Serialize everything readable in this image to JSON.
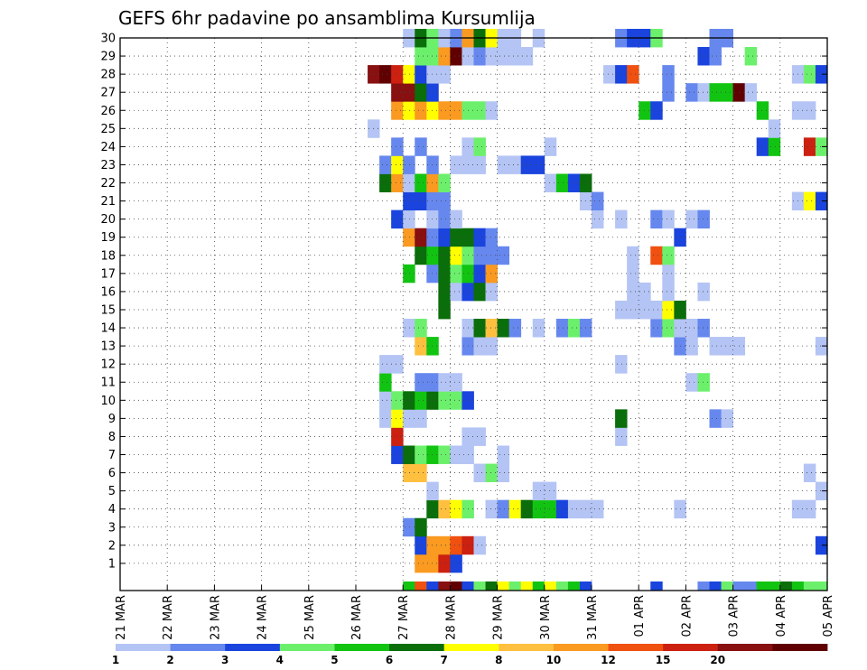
{
  "chart_data": {
    "type": "heatmap",
    "title": "GEFS 6hr padavine po ansamblima Kursumlija",
    "x_ticks": [
      "21 MAR",
      "22 MAR",
      "23 MAR",
      "24 MAR",
      "25 MAR",
      "26 MAR",
      "27 MAR",
      "28 MAR",
      "29 MAR",
      "30 MAR",
      "31 MAR",
      "01 APR",
      "02 APR",
      "03 APR",
      "04 APR",
      "05 APR"
    ],
    "y_ticks": [
      "1",
      "2",
      "3",
      "4",
      "5",
      "6",
      "7",
      "8",
      "9",
      "10",
      "11",
      "12",
      "13",
      "14",
      "15",
      "16",
      "17",
      "18",
      "19",
      "20",
      "21",
      "22",
      "23",
      "24",
      "25",
      "26",
      "27",
      "28",
      "29",
      "30"
    ],
    "x_range": [
      0,
      60
    ],
    "y_range": [
      0,
      30
    ],
    "grid": true,
    "colorbar": {
      "labels": [
        "1",
        "2",
        "3",
        "4",
        "5",
        "6",
        "7",
        "8",
        "10",
        "12",
        "15",
        "20"
      ],
      "colors": [
        "#b4c4f4",
        "#6688ee",
        "#1a44dd",
        "#6cf06c",
        "#12c412",
        "#0a6e0a",
        "#ffff00",
        "#ffc040",
        "#fa9a20",
        "#f05010",
        "#cc2010",
        "#881010",
        "#600000"
      ]
    },
    "cells": [
      [
        24,
        0,
        4
      ],
      [
        25,
        0,
        9
      ],
      [
        26,
        0,
        2
      ],
      [
        27,
        0,
        11
      ],
      [
        28,
        0,
        12
      ],
      [
        29,
        0,
        2
      ],
      [
        30,
        0,
        3
      ],
      [
        31,
        0,
        5
      ],
      [
        32,
        0,
        6
      ],
      [
        33,
        0,
        3
      ],
      [
        34,
        0,
        6
      ],
      [
        35,
        0,
        4
      ],
      [
        36,
        0,
        6
      ],
      [
        37,
        0,
        3
      ],
      [
        38,
        0,
        4
      ],
      [
        39,
        0,
        2
      ],
      [
        45,
        0,
        2
      ],
      [
        49,
        0,
        1
      ],
      [
        50,
        0,
        2
      ],
      [
        51,
        0,
        3
      ],
      [
        52,
        0,
        1
      ],
      [
        53,
        0,
        1
      ],
      [
        54,
        0,
        4
      ],
      [
        55,
        0,
        4
      ],
      [
        56,
        0,
        5
      ],
      [
        57,
        0,
        4
      ],
      [
        58,
        0,
        3
      ],
      [
        59,
        0,
        3
      ],
      [
        25,
        1,
        8
      ],
      [
        26,
        1,
        8
      ],
      [
        27,
        1,
        10
      ],
      [
        28,
        1,
        2
      ],
      [
        25,
        2,
        2
      ],
      [
        26,
        2,
        8
      ],
      [
        27,
        2,
        8
      ],
      [
        28,
        2,
        9
      ],
      [
        29,
        2,
        10
      ],
      [
        30,
        2,
        0
      ],
      [
        59,
        2,
        2
      ],
      [
        24,
        3,
        1
      ],
      [
        25,
        3,
        5
      ],
      [
        26,
        4,
        5
      ],
      [
        27,
        4,
        7
      ],
      [
        28,
        4,
        6
      ],
      [
        29,
        4,
        3
      ],
      [
        31,
        4,
        0
      ],
      [
        32,
        4,
        1
      ],
      [
        33,
        4,
        6
      ],
      [
        34,
        4,
        5
      ],
      [
        35,
        4,
        4
      ],
      [
        36,
        4,
        4
      ],
      [
        37,
        4,
        2
      ],
      [
        38,
        4,
        0
      ],
      [
        39,
        4,
        0
      ],
      [
        40,
        4,
        0
      ],
      [
        47,
        4,
        0
      ],
      [
        57,
        4,
        0
      ],
      [
        58,
        4,
        0
      ],
      [
        26,
        5,
        0
      ],
      [
        35,
        5,
        0
      ],
      [
        36,
        5,
        0
      ],
      [
        59,
        5,
        0
      ],
      [
        24,
        6,
        7
      ],
      [
        25,
        6,
        7
      ],
      [
        30,
        6,
        0
      ],
      [
        31,
        6,
        3
      ],
      [
        32,
        6,
        0
      ],
      [
        58,
        6,
        0
      ],
      [
        23,
        7,
        2
      ],
      [
        24,
        7,
        5
      ],
      [
        25,
        7,
        3
      ],
      [
        26,
        7,
        4
      ],
      [
        27,
        7,
        3
      ],
      [
        28,
        7,
        0
      ],
      [
        29,
        7,
        0
      ],
      [
        32,
        7,
        0
      ],
      [
        23,
        8,
        10
      ],
      [
        29,
        8,
        0
      ],
      [
        30,
        8,
        0
      ],
      [
        42,
        8,
        0
      ],
      [
        22,
        9,
        0
      ],
      [
        23,
        9,
        6
      ],
      [
        24,
        9,
        0
      ],
      [
        25,
        9,
        0
      ],
      [
        42,
        9,
        5
      ],
      [
        50,
        9,
        1
      ],
      [
        51,
        9,
        0
      ],
      [
        22,
        10,
        0
      ],
      [
        23,
        10,
        3
      ],
      [
        24,
        10,
        5
      ],
      [
        25,
        10,
        4
      ],
      [
        26,
        10,
        5
      ],
      [
        27,
        10,
        3
      ],
      [
        28,
        10,
        3
      ],
      [
        29,
        10,
        2
      ],
      [
        22,
        11,
        4
      ],
      [
        25,
        11,
        1
      ],
      [
        26,
        11,
        1
      ],
      [
        27,
        11,
        0
      ],
      [
        28,
        11,
        0
      ],
      [
        48,
        11,
        0
      ],
      [
        49,
        11,
        3
      ],
      [
        22,
        12,
        0
      ],
      [
        23,
        12,
        0
      ],
      [
        42,
        12,
        0
      ],
      [
        25,
        13,
        7
      ],
      [
        26,
        13,
        4
      ],
      [
        29,
        13,
        1
      ],
      [
        30,
        13,
        0
      ],
      [
        31,
        13,
        0
      ],
      [
        47,
        13,
        1
      ],
      [
        48,
        13,
        0
      ],
      [
        50,
        13,
        0
      ],
      [
        51,
        13,
        0
      ],
      [
        52,
        13,
        0
      ],
      [
        59,
        13,
        0
      ],
      [
        24,
        14,
        0
      ],
      [
        25,
        14,
        3
      ],
      [
        29,
        14,
        0
      ],
      [
        30,
        14,
        5
      ],
      [
        31,
        14,
        7
      ],
      [
        32,
        14,
        5
      ],
      [
        33,
        14,
        1
      ],
      [
        35,
        14,
        0
      ],
      [
        37,
        14,
        1
      ],
      [
        38,
        14,
        3
      ],
      [
        39,
        14,
        1
      ],
      [
        45,
        14,
        1
      ],
      [
        46,
        14,
        3
      ],
      [
        47,
        14,
        0
      ],
      [
        48,
        14,
        0
      ],
      [
        49,
        14,
        1
      ],
      [
        27,
        15,
        5
      ],
      [
        42,
        15,
        0
      ],
      [
        43,
        15,
        0
      ],
      [
        44,
        15,
        0
      ],
      [
        45,
        15,
        0
      ],
      [
        46,
        15,
        6
      ],
      [
        47,
        15,
        5
      ],
      [
        27,
        16,
        5
      ],
      [
        28,
        16,
        0
      ],
      [
        29,
        16,
        2
      ],
      [
        30,
        16,
        5
      ],
      [
        31,
        16,
        0
      ],
      [
        43,
        16,
        0
      ],
      [
        44,
        16,
        0
      ],
      [
        46,
        16,
        0
      ],
      [
        49,
        16,
        0
      ],
      [
        24,
        17,
        4
      ],
      [
        26,
        17,
        1
      ],
      [
        27,
        17,
        5
      ],
      [
        28,
        17,
        3
      ],
      [
        29,
        17,
        4
      ],
      [
        30,
        17,
        2
      ],
      [
        31,
        17,
        8
      ],
      [
        43,
        17,
        0
      ],
      [
        46,
        17,
        0
      ],
      [
        25,
        18,
        5
      ],
      [
        26,
        18,
        4
      ],
      [
        27,
        18,
        5
      ],
      [
        28,
        18,
        6
      ],
      [
        29,
        18,
        3
      ],
      [
        30,
        18,
        1
      ],
      [
        31,
        18,
        1
      ],
      [
        32,
        18,
        1
      ],
      [
        43,
        18,
        0
      ],
      [
        45,
        18,
        9
      ],
      [
        46,
        18,
        3
      ],
      [
        24,
        19,
        8
      ],
      [
        25,
        19,
        11
      ],
      [
        26,
        19,
        1
      ],
      [
        27,
        19,
        2
      ],
      [
        28,
        19,
        5
      ],
      [
        29,
        19,
        5
      ],
      [
        30,
        19,
        2
      ],
      [
        31,
        19,
        1
      ],
      [
        47,
        19,
        2
      ],
      [
        23,
        20,
        2
      ],
      [
        24,
        20,
        0
      ],
      [
        26,
        20,
        0
      ],
      [
        27,
        20,
        1
      ],
      [
        28,
        20,
        0
      ],
      [
        40,
        20,
        0
      ],
      [
        42,
        20,
        0
      ],
      [
        45,
        20,
        1
      ],
      [
        46,
        20,
        0
      ],
      [
        48,
        20,
        0
      ],
      [
        49,
        20,
        1
      ],
      [
        24,
        21,
        2
      ],
      [
        25,
        21,
        2
      ],
      [
        26,
        21,
        1
      ],
      [
        27,
        21,
        1
      ],
      [
        39,
        21,
        0
      ],
      [
        40,
        21,
        1
      ],
      [
        57,
        21,
        0
      ],
      [
        58,
        21,
        6
      ],
      [
        59,
        21,
        2
      ],
      [
        22,
        22,
        5
      ],
      [
        23,
        22,
        8
      ],
      [
        24,
        22,
        0
      ],
      [
        25,
        22,
        4
      ],
      [
        26,
        22,
        8
      ],
      [
        27,
        22,
        3
      ],
      [
        36,
        22,
        0
      ],
      [
        37,
        22,
        4
      ],
      [
        38,
        22,
        2
      ],
      [
        39,
        22,
        5
      ],
      [
        22,
        23,
        1
      ],
      [
        23,
        23,
        6
      ],
      [
        24,
        23,
        1
      ],
      [
        26,
        23,
        1
      ],
      [
        28,
        23,
        0
      ],
      [
        29,
        23,
        0
      ],
      [
        30,
        23,
        0
      ],
      [
        32,
        23,
        0
      ],
      [
        33,
        23,
        0
      ],
      [
        34,
        23,
        2
      ],
      [
        35,
        23,
        2
      ],
      [
        23,
        24,
        1
      ],
      [
        25,
        24,
        1
      ],
      [
        29,
        24,
        0
      ],
      [
        30,
        24,
        3
      ],
      [
        36,
        24,
        0
      ],
      [
        54,
        24,
        2
      ],
      [
        55,
        24,
        4
      ],
      [
        58,
        24,
        10
      ],
      [
        59,
        24,
        3
      ],
      [
        21,
        25,
        0
      ],
      [
        55,
        25,
        0
      ],
      [
        23,
        26,
        8
      ],
      [
        24,
        26,
        6
      ],
      [
        25,
        26,
        8
      ],
      [
        26,
        26,
        6
      ],
      [
        27,
        26,
        8
      ],
      [
        28,
        26,
        8
      ],
      [
        29,
        26,
        3
      ],
      [
        30,
        26,
        3
      ],
      [
        31,
        26,
        0
      ],
      [
        44,
        26,
        4
      ],
      [
        45,
        26,
        2
      ],
      [
        54,
        26,
        4
      ],
      [
        57,
        26,
        0
      ],
      [
        58,
        26,
        0
      ],
      [
        23,
        27,
        11
      ],
      [
        24,
        27,
        11
      ],
      [
        25,
        27,
        5
      ],
      [
        26,
        27,
        2
      ],
      [
        46,
        27,
        1
      ],
      [
        48,
        27,
        1
      ],
      [
        49,
        27,
        0
      ],
      [
        50,
        27,
        4
      ],
      [
        51,
        27,
        4
      ],
      [
        52,
        27,
        12
      ],
      [
        53,
        27,
        0
      ],
      [
        21,
        28,
        11
      ],
      [
        22,
        28,
        12
      ],
      [
        23,
        28,
        10
      ],
      [
        24,
        28,
        6
      ],
      [
        25,
        28,
        2
      ],
      [
        26,
        28,
        0
      ],
      [
        27,
        28,
        0
      ],
      [
        41,
        28,
        0
      ],
      [
        42,
        28,
        2
      ],
      [
        43,
        28,
        9
      ],
      [
        46,
        28,
        1
      ],
      [
        57,
        28,
        0
      ],
      [
        58,
        28,
        3
      ],
      [
        59,
        28,
        2
      ],
      [
        25,
        29,
        3
      ],
      [
        26,
        29,
        3
      ],
      [
        27,
        29,
        8
      ],
      [
        28,
        29,
        12
      ],
      [
        29,
        29,
        0
      ],
      [
        30,
        29,
        1
      ],
      [
        31,
        29,
        0
      ],
      [
        32,
        29,
        0
      ],
      [
        33,
        29,
        0
      ],
      [
        34,
        29,
        0
      ],
      [
        49,
        29,
        2
      ],
      [
        50,
        29,
        1
      ],
      [
        53,
        29,
        3
      ],
      [
        24,
        30,
        0
      ],
      [
        25,
        30,
        5
      ],
      [
        26,
        30,
        3
      ],
      [
        27,
        30,
        0
      ],
      [
        28,
        30,
        1
      ],
      [
        29,
        30,
        8
      ],
      [
        30,
        30,
        5
      ],
      [
        31,
        30,
        6
      ],
      [
        32,
        30,
        0
      ],
      [
        33,
        30,
        0
      ],
      [
        35,
        30,
        0
      ],
      [
        42,
        30,
        1
      ],
      [
        43,
        30,
        2
      ],
      [
        44,
        30,
        2
      ],
      [
        45,
        30,
        3
      ],
      [
        50,
        30,
        1
      ],
      [
        51,
        30,
        1
      ]
    ]
  }
}
